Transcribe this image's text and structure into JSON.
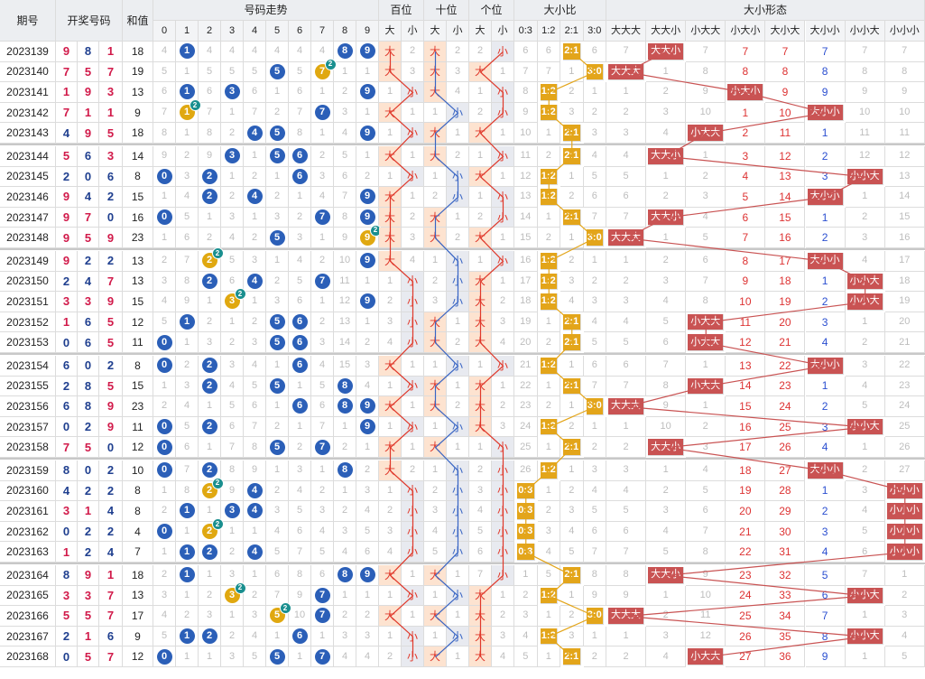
{
  "headers": {
    "issue": "期号",
    "draw": "开奖号码",
    "sum": "和值",
    "trend": "号码走势",
    "hundreds": "百位",
    "tens": "十位",
    "units": "个位",
    "ratio": "大小比",
    "form": "大小形态",
    "digits": [
      "0",
      "1",
      "2",
      "3",
      "4",
      "5",
      "6",
      "7",
      "8",
      "9"
    ],
    "big": "大",
    "small": "小",
    "ratios": [
      "0:3",
      "1:2",
      "2:1",
      "3:0"
    ],
    "forms": [
      "大大大",
      "大大小",
      "小大大",
      "小大小",
      "大小大",
      "大小小",
      "小小大",
      "小小小"
    ]
  },
  "rows": [
    {
      "issue": "2023139",
      "draw": [
        9,
        8,
        1
      ],
      "sum": "18"
    },
    {
      "issue": "2023140",
      "draw": [
        7,
        5,
        7
      ],
      "sum": "19"
    },
    {
      "issue": "2023141",
      "draw": [
        1,
        9,
        3
      ],
      "sum": "13"
    },
    {
      "issue": "2023142",
      "draw": [
        7,
        1,
        1
      ],
      "sum": "9"
    },
    {
      "issue": "2023143",
      "draw": [
        4,
        9,
        5
      ],
      "sum": "18"
    },
    {
      "issue": "2023144",
      "draw": [
        5,
        6,
        3
      ],
      "sum": "14"
    },
    {
      "issue": "2023145",
      "draw": [
        2,
        0,
        6
      ],
      "sum": "8"
    },
    {
      "issue": "2023146",
      "draw": [
        9,
        4,
        2
      ],
      "sum": "15"
    },
    {
      "issue": "2023147",
      "draw": [
        9,
        7,
        0
      ],
      "sum": "16"
    },
    {
      "issue": "2023148",
      "draw": [
        9,
        5,
        9
      ],
      "sum": "23"
    },
    {
      "issue": "2023149",
      "draw": [
        9,
        2,
        2
      ],
      "sum": "13"
    },
    {
      "issue": "2023150",
      "draw": [
        2,
        4,
        7
      ],
      "sum": "13"
    },
    {
      "issue": "2023151",
      "draw": [
        3,
        3,
        9
      ],
      "sum": "15"
    },
    {
      "issue": "2023152",
      "draw": [
        1,
        6,
        5
      ],
      "sum": "12"
    },
    {
      "issue": "2023153",
      "draw": [
        0,
        6,
        5
      ],
      "sum": "11"
    },
    {
      "issue": "2023154",
      "draw": [
        6,
        0,
        2
      ],
      "sum": "8"
    },
    {
      "issue": "2023155",
      "draw": [
        2,
        8,
        5
      ],
      "sum": "15"
    },
    {
      "issue": "2023156",
      "draw": [
        6,
        8,
        9
      ],
      "sum": "23"
    },
    {
      "issue": "2023157",
      "draw": [
        0,
        2,
        9
      ],
      "sum": "11"
    },
    {
      "issue": "2023158",
      "draw": [
        7,
        5,
        0
      ],
      "sum": "12"
    },
    {
      "issue": "2023159",
      "draw": [
        8,
        0,
        2
      ],
      "sum": "10"
    },
    {
      "issue": "2023160",
      "draw": [
        4,
        2,
        2
      ],
      "sum": "8"
    },
    {
      "issue": "2023161",
      "draw": [
        3,
        1,
        4
      ],
      "sum": "8"
    },
    {
      "issue": "2023162",
      "draw": [
        0,
        2,
        2
      ],
      "sum": "4"
    },
    {
      "issue": "2023163",
      "draw": [
        1,
        2,
        4
      ],
      "sum": "7"
    },
    {
      "issue": "2023164",
      "draw": [
        8,
        9,
        1
      ],
      "sum": "18"
    },
    {
      "issue": "2023165",
      "draw": [
        3,
        3,
        7
      ],
      "sum": "13"
    },
    {
      "issue": "2023166",
      "draw": [
        5,
        5,
        7
      ],
      "sum": "17"
    },
    {
      "issue": "2023167",
      "draw": [
        2,
        1,
        6
      ],
      "sum": "9"
    },
    {
      "issue": "2023168",
      "draw": [
        0,
        5,
        7
      ],
      "sum": "12"
    }
  ],
  "colors": {
    "ball": "#2b5fb8",
    "repeat": "#e0a810",
    "badge": "#1a8f8f",
    "accent": "#c95353",
    "ratio": "#e3a51a"
  }
}
